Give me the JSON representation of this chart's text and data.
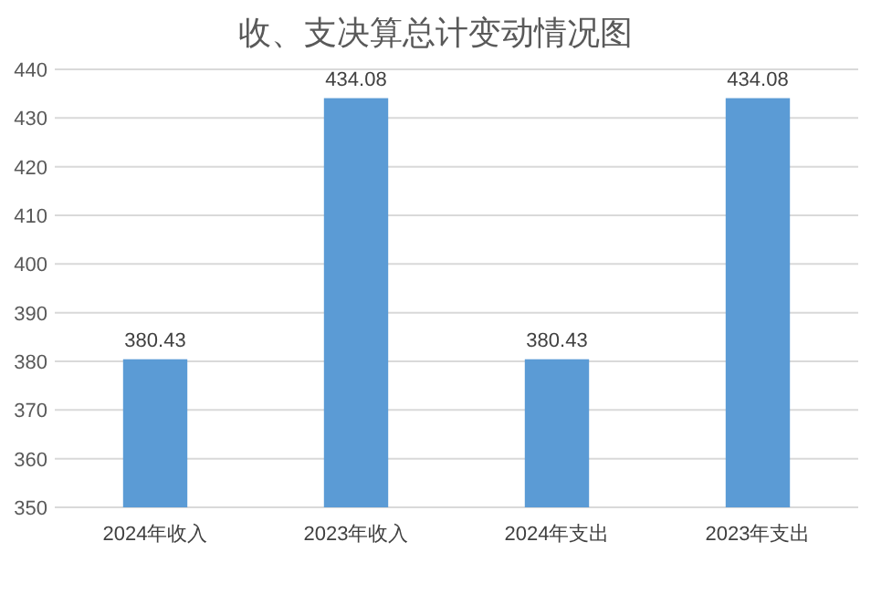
{
  "chart_data": {
    "type": "bar",
    "title": "收、支决算总计变动情况图",
    "categories": [
      "2024年收入",
      "2023年收入",
      "2024年支出",
      "2023年支出"
    ],
    "values": [
      380.43,
      434.08,
      380.43,
      434.08
    ],
    "color": "#5b9bd5",
    "ylim": [
      350,
      440
    ],
    "yticks": [
      350,
      360,
      370,
      380,
      390,
      400,
      410,
      420,
      430,
      440
    ],
    "grid": "y",
    "data_labels": true
  }
}
